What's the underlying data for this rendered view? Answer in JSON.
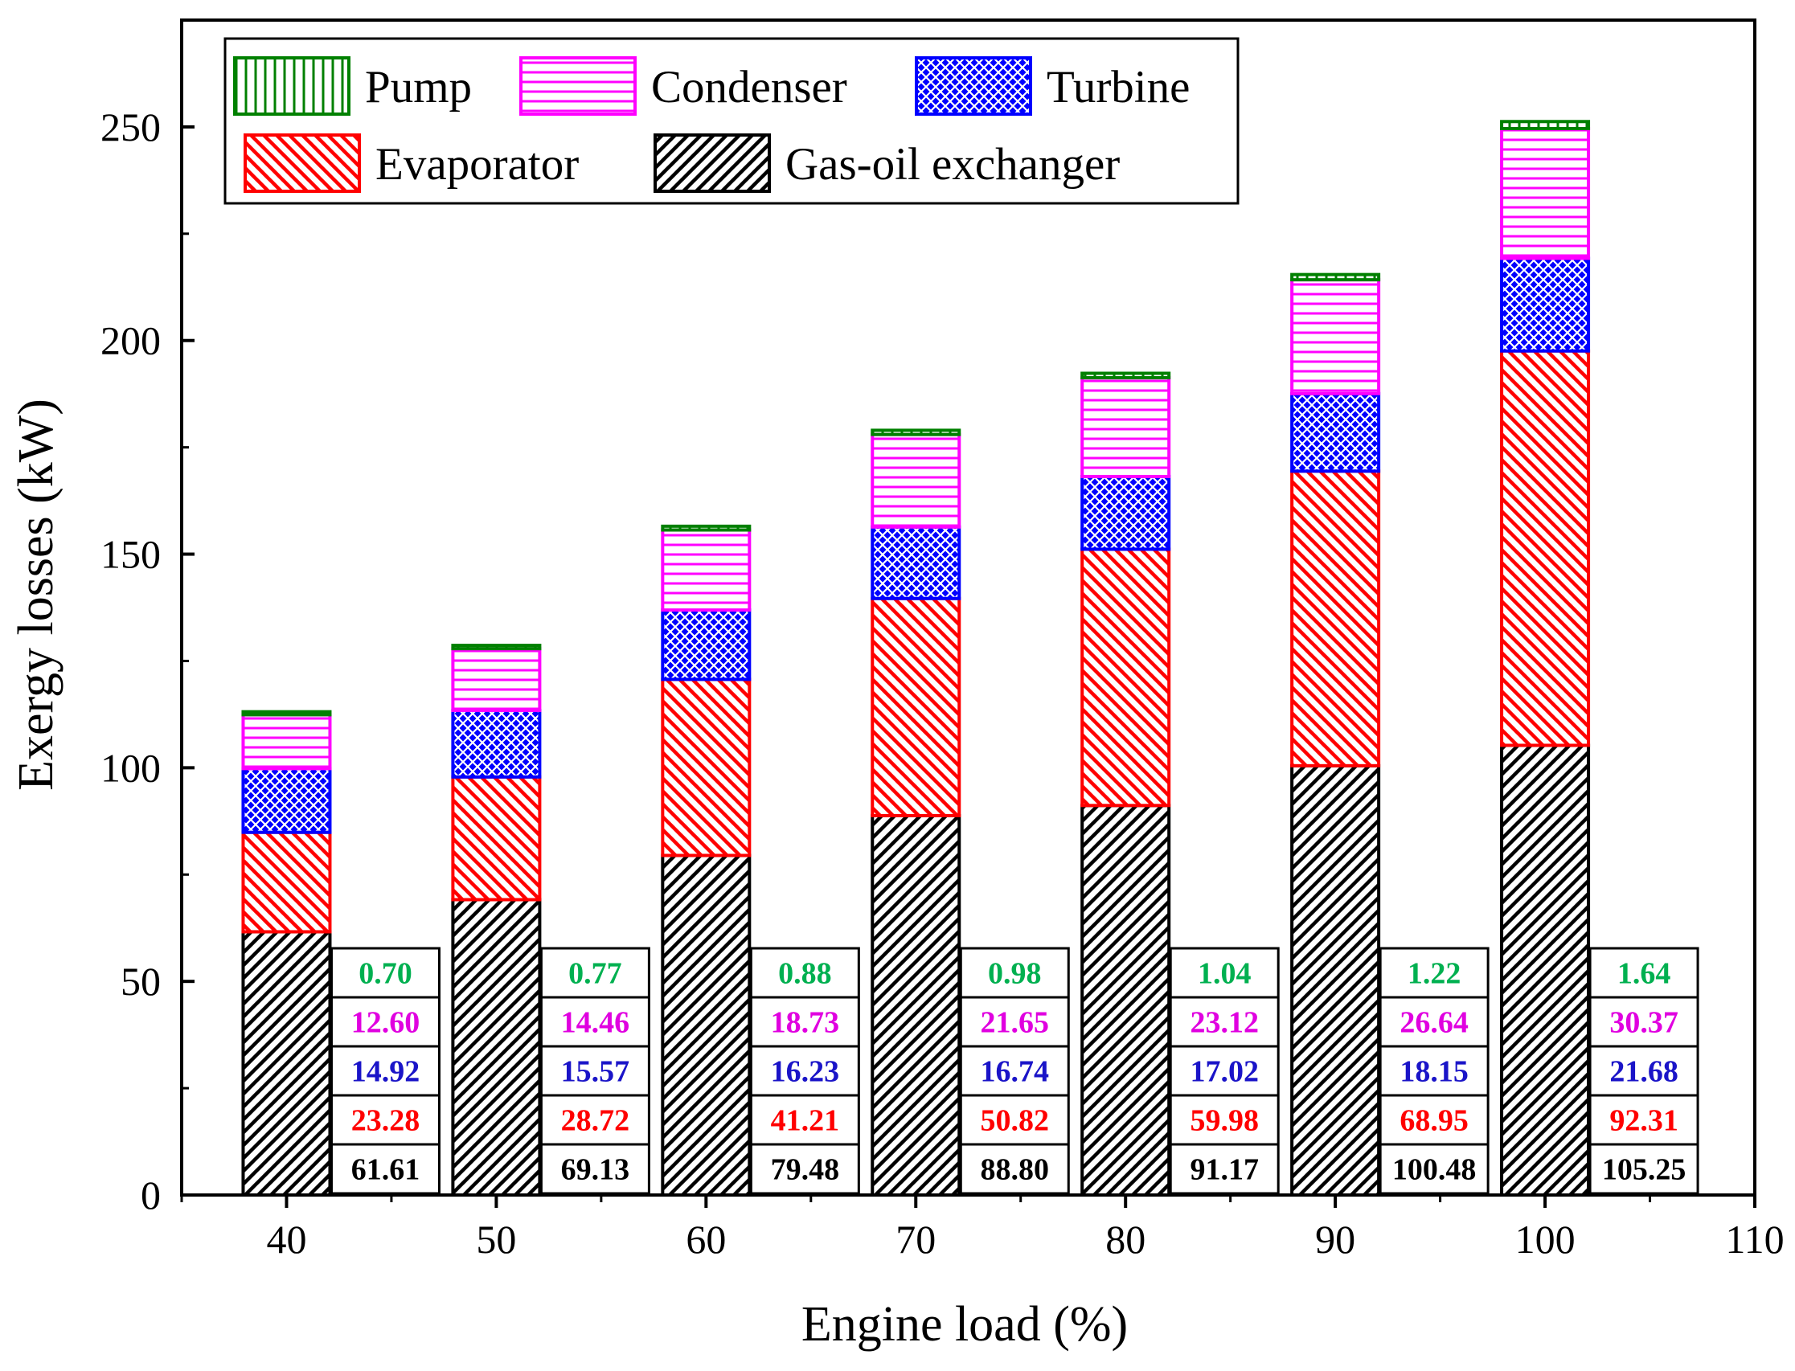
{
  "chart_data": {
    "type": "bar",
    "stacked": true,
    "title": "",
    "xlabel": "Engine load (%)",
    "ylabel": "Exergy losses (kW)",
    "xlim": [
      35,
      110
    ],
    "ylim": [
      0,
      275
    ],
    "xticks": [
      40,
      50,
      60,
      70,
      80,
      90,
      100,
      110
    ],
    "yticks": [
      0,
      50,
      100,
      150,
      200,
      250
    ],
    "categories": [
      "40",
      "50",
      "60",
      "70",
      "80",
      "90",
      "100"
    ],
    "series": [
      {
        "name": "Gas-oil exchanger",
        "color": "#000000",
        "labels": [
          "61.61",
          "69.13",
          "79.48",
          "88.80",
          "91.17",
          "100.48",
          "105.25"
        ],
        "values": [
          61.61,
          69.13,
          79.48,
          88.8,
          91.17,
          100.48,
          105.25
        ]
      },
      {
        "name": "Evaporator",
        "color": "#ff0000",
        "labels": [
          "23.28",
          "28.72",
          "41.21",
          "50.82",
          "59.98",
          "68.95",
          "92.31"
        ],
        "values": [
          23.28,
          28.72,
          41.21,
          50.82,
          59.98,
          68.95,
          92.31
        ]
      },
      {
        "name": "Turbine",
        "color": "#0000ff",
        "labels": [
          "14.92",
          "15.57",
          "16.23",
          "16.74",
          "17.02",
          "18.15",
          "21.68"
        ],
        "values": [
          14.92,
          15.57,
          16.23,
          16.74,
          17.02,
          18.15,
          21.68
        ]
      },
      {
        "name": "Condenser",
        "color": "#ff00ff",
        "labels": [
          "12.60",
          "14.46",
          "18.73",
          "21.65",
          "23.12",
          "26.64",
          "30.37"
        ],
        "values": [
          12.6,
          14.46,
          18.73,
          21.65,
          23.12,
          26.64,
          30.37
        ]
      },
      {
        "name": "Pump",
        "color": "#008000",
        "labels": [
          "0.70",
          "0.77",
          "0.88",
          "0.98",
          "1.04",
          "1.22",
          "1.64"
        ],
        "values": [
          0.7,
          0.77,
          0.88,
          0.98,
          1.04,
          1.22,
          1.64
        ]
      }
    ],
    "label_colors": {
      "Gas-oil exchanger": "#000000",
      "Evaporator": "#ff0000",
      "Turbine": "#1a14c8",
      "Condenser": "#e000e0",
      "Pump": "#00b050"
    },
    "legend": {
      "position": "top-left",
      "order": [
        "Pump",
        "Condenser",
        "Turbine",
        "Evaporator",
        "Gas-oil exchanger"
      ]
    }
  }
}
